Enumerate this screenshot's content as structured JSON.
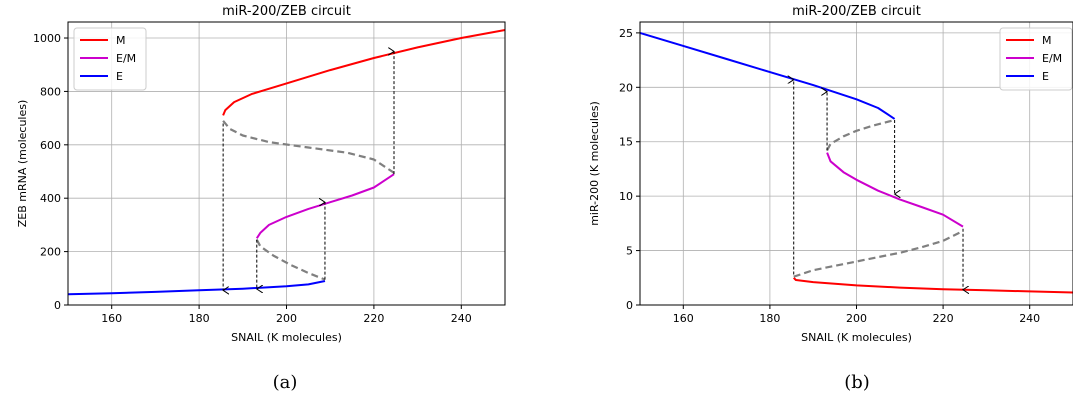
{
  "figure": {
    "captions": [
      "(a)",
      "(b)"
    ]
  },
  "chart_data": [
    {
      "type": "line",
      "title": "miR-200/ZEB circuit",
      "xlabel": "SNAIL (K molecules)",
      "ylabel": "ZEB mRNA (molecules)",
      "xlim": [
        150,
        250
      ],
      "ylim": [
        0,
        1060
      ],
      "xticks": [
        160,
        180,
        200,
        220,
        240
      ],
      "yticks": [
        0,
        200,
        400,
        600,
        800,
        1000
      ],
      "grid": true,
      "legend": {
        "position": "top-left",
        "entries": [
          "M",
          "E/M",
          "E"
        ]
      },
      "colors": {
        "M": "#ff0000",
        "E/M": "#cc00cc",
        "E": "#0000ff",
        "unstable": "#808080",
        "arrow": "#000000"
      },
      "series": [
        {
          "name": "E",
          "style": "solid",
          "color": "#0000ff",
          "x": [
            150,
            160,
            170,
            180,
            190,
            200,
            205,
            208.8
          ],
          "y": [
            40,
            44,
            49,
            55,
            61,
            70,
            77,
            90
          ]
        },
        {
          "name": "E/M",
          "style": "solid",
          "color": "#cc00cc",
          "x": [
            193.2,
            194,
            196,
            200,
            205,
            210,
            215,
            220,
            224.6
          ],
          "y": [
            250,
            270,
            300,
            330,
            360,
            385,
            410,
            440,
            490
          ]
        },
        {
          "name": "M",
          "style": "solid",
          "color": "#ff0000",
          "x": [
            185.5,
            186,
            188,
            192,
            200,
            210,
            220,
            230,
            240,
            250
          ],
          "y": [
            710,
            730,
            760,
            790,
            830,
            880,
            925,
            965,
            1000,
            1030
          ]
        },
        {
          "name": "",
          "style": "dashed",
          "color": "#808080",
          "x": [
            185.5,
            187,
            190,
            196,
            205,
            214,
            220,
            224.6
          ],
          "y": [
            690,
            660,
            635,
            610,
            590,
            570,
            545,
            495
          ]
        },
        {
          "name": "",
          "style": "dashed",
          "color": "#808080",
          "x": [
            193.2,
            194,
            197,
            201,
            205,
            208.8
          ],
          "y": [
            245,
            220,
            185,
            150,
            120,
            95
          ]
        }
      ],
      "arrows": [
        {
          "x": 185.5,
          "y_from": 680,
          "y_to": 55
        },
        {
          "x": 193.2,
          "y_from": 245,
          "y_to": 60
        },
        {
          "x": 208.8,
          "y_from": 95,
          "y_to": 385
        },
        {
          "x": 224.6,
          "y_from": 490,
          "y_to": 950
        }
      ]
    },
    {
      "type": "line",
      "title": "miR-200/ZEB circuit",
      "xlabel": "SNAIL (K molecules)",
      "ylabel": "miR-200 (K molecules)",
      "xlim": [
        150,
        250
      ],
      "ylim": [
        0,
        26
      ],
      "xticks": [
        160,
        180,
        200,
        220,
        240
      ],
      "yticks": [
        0,
        5,
        10,
        15,
        20,
        25
      ],
      "grid": true,
      "legend": {
        "position": "top-right",
        "entries": [
          "M",
          "E/M",
          "E"
        ]
      },
      "colors": {
        "M": "#ff0000",
        "E/M": "#cc00cc",
        "E": "#0000ff",
        "unstable": "#808080",
        "arrow": "#000000"
      },
      "series": [
        {
          "name": "E",
          "style": "solid",
          "color": "#0000ff",
          "x": [
            150,
            160,
            170,
            180,
            190,
            200,
            205,
            208.8
          ],
          "y": [
            25,
            23.8,
            22.6,
            21.4,
            20.2,
            18.9,
            18.1,
            17.1
          ]
        },
        {
          "name": "E/M",
          "style": "solid",
          "color": "#cc00cc",
          "x": [
            193.2,
            194,
            197,
            200,
            205,
            210,
            215,
            220,
            224.6
          ],
          "y": [
            14.0,
            13.2,
            12.2,
            11.5,
            10.5,
            9.7,
            9.0,
            8.3,
            7.2
          ]
        },
        {
          "name": "M",
          "style": "solid",
          "color": "#ff0000",
          "x": [
            185.5,
            186,
            190,
            200,
            210,
            220,
            230,
            240,
            250
          ],
          "y": [
            2.5,
            2.3,
            2.1,
            1.8,
            1.6,
            1.45,
            1.35,
            1.25,
            1.15
          ]
        },
        {
          "name": "",
          "style": "dashed",
          "color": "#808080",
          "x": [
            185.5,
            190,
            195,
            200,
            205,
            210,
            215,
            220,
            224.6
          ],
          "y": [
            2.6,
            3.2,
            3.6,
            4.0,
            4.4,
            4.8,
            5.3,
            5.9,
            6.8
          ]
        },
        {
          "name": "",
          "style": "dashed",
          "color": "#808080",
          "x": [
            193.2,
            194,
            197,
            200,
            204,
            208.8
          ],
          "y": [
            14.2,
            14.8,
            15.5,
            16.0,
            16.5,
            17.0
          ]
        }
      ],
      "arrows": [
        {
          "x": 185.5,
          "y_from": 2.8,
          "y_to": 20.7
        },
        {
          "x": 193.2,
          "y_from": 14.2,
          "y_to": 19.6
        },
        {
          "x": 208.8,
          "y_from": 17.0,
          "y_to": 10.2
        },
        {
          "x": 224.6,
          "y_from": 7.0,
          "y_to": 1.4
        }
      ]
    }
  ]
}
